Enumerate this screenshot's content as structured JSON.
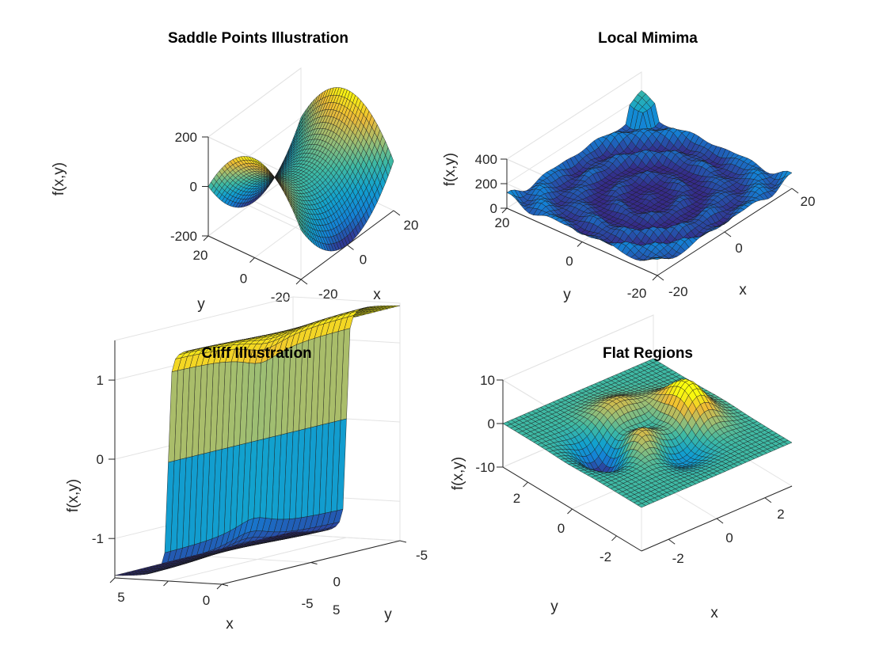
{
  "figure": {
    "background": "#ffffff",
    "mesh_color": "#1a1a1a",
    "colormap": "parula"
  },
  "chart_data": [
    {
      "type": "surface",
      "title": "Saddle Points Illustration",
      "xlabel": "x",
      "ylabel": "y",
      "zlabel": "f(x,y)",
      "xlim": [
        -20,
        20
      ],
      "ylim": [
        -20,
        20
      ],
      "zlim": [
        -200,
        200
      ],
      "xticks": [
        "-20",
        "0",
        "20"
      ],
      "yticks": [
        "20",
        "0",
        "-20"
      ],
      "zticks": [
        "200",
        "0",
        "-200"
      ],
      "function": "x^2 - y^2",
      "grid": true
    },
    {
      "type": "surface",
      "title": "Local Mimima",
      "xlabel": "x",
      "ylabel": "y",
      "zlabel": "f(x,y)",
      "xlim": [
        -20,
        20
      ],
      "ylim": [
        -20,
        20
      ],
      "zlim": [
        0,
        400
      ],
      "xticks": [
        "-20",
        "0",
        "20"
      ],
      "yticks": [
        "20",
        "0",
        "-20"
      ],
      "zticks": [
        "400",
        "200",
        "0"
      ],
      "function": "bowl with rippled rings (x^2 + y^2 with oscillating terms)",
      "grid": true
    },
    {
      "type": "surface",
      "title": "Cliff Illustration",
      "xlabel": "x",
      "ylabel": "y",
      "zlabel": "f(x,y)",
      "xlim": [
        -5,
        5
      ],
      "ylim": [
        -5,
        5
      ],
      "zlim": [
        -1.5,
        1.5
      ],
      "xticks": [
        "5",
        "0",
        "-5"
      ],
      "yticks": [
        "-5",
        "0",
        "5"
      ],
      "zticks": [
        "1",
        "0",
        "-1"
      ],
      "function": "steep step (arctan-like cliff) from about 1.5 to about -1.5",
      "grid": true
    },
    {
      "type": "surface",
      "title": "Flat Regions",
      "xlabel": "x",
      "ylabel": "y",
      "zlabel": "f(x,y)",
      "xlim": [
        -3,
        3
      ],
      "ylim": [
        -3,
        3
      ],
      "zlim": [
        -10,
        10
      ],
      "xticks": [
        "-2",
        "0",
        "2"
      ],
      "yticks": [
        "2",
        "0",
        "-2"
      ],
      "zticks": [
        "10",
        "0",
        "-10"
      ],
      "function": "peaks(x,y)",
      "grid": true
    }
  ]
}
